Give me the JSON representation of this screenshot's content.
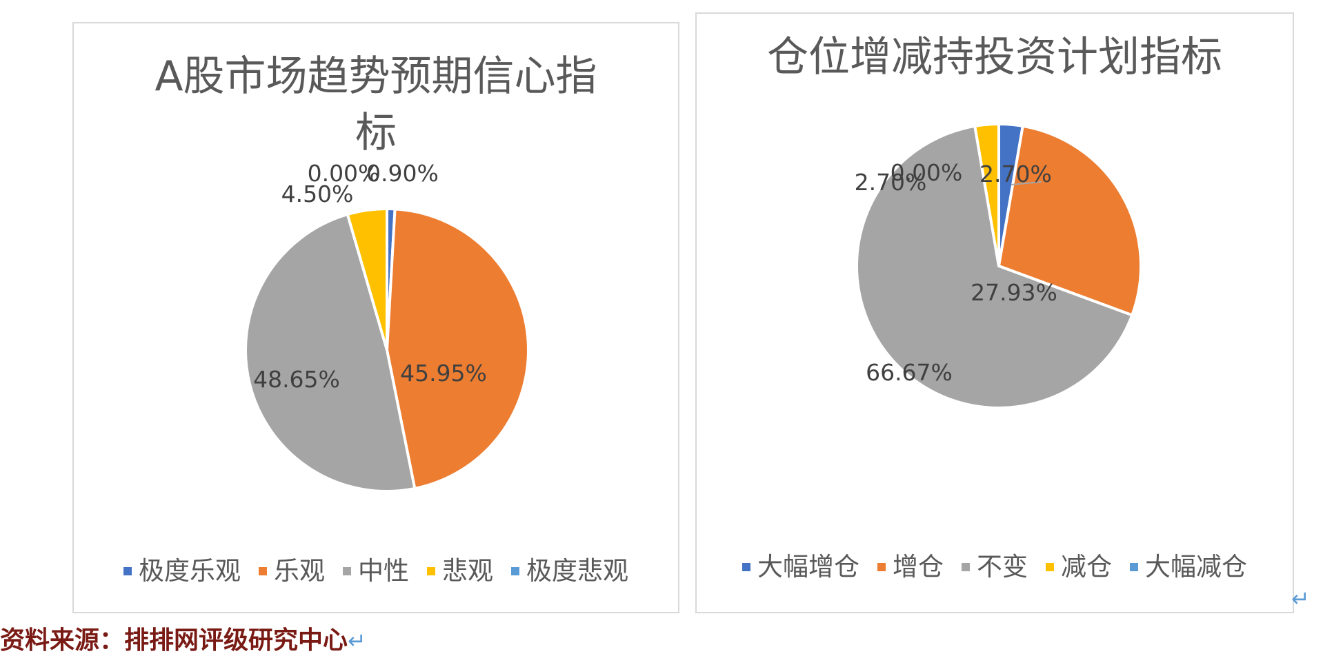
{
  "chart_data": [
    {
      "type": "pie",
      "title": "A股市场趋势预期信心指标",
      "categories": [
        "极度乐观",
        "乐观",
        "中性",
        "悲观",
        "极度悲观"
      ],
      "values": [
        0.9,
        45.95,
        48.65,
        4.5,
        0.0
      ],
      "data_labels": [
        "0.90%",
        "45.95%",
        "48.65%",
        "4.50%",
        "0.00%"
      ],
      "colors": [
        "#4472c4",
        "#ed7d31",
        "#a5a5a5",
        "#ffc000",
        "#5b9bd5"
      ],
      "legend_position": "bottom",
      "start_angle": "top, clockwise"
    },
    {
      "type": "pie",
      "title": "仓位增减持投资计划指标",
      "categories": [
        "大幅增仓",
        "增仓",
        "不变",
        "减仓",
        "大幅减仓"
      ],
      "values": [
        2.7,
        27.93,
        66.67,
        2.7,
        0.0
      ],
      "data_labels": [
        "2.70%",
        "27.93%",
        "66.67%",
        "2.70%",
        "0.00%"
      ],
      "colors": [
        "#4472c4",
        "#ed7d31",
        "#a5a5a5",
        "#ffc000",
        "#5b9bd5"
      ],
      "legend_position": "bottom",
      "start_angle": "top, clockwise"
    }
  ],
  "source_note": "资料来源：排排网评级研究中心",
  "return_glyph": "↵"
}
